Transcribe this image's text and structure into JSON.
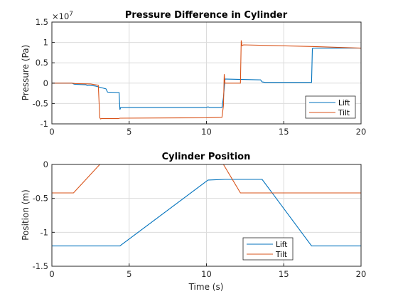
{
  "colors": {
    "lift": "#0072BD",
    "tilt": "#D95319"
  },
  "chart_data": [
    {
      "type": "line",
      "title": "Pressure Difference in Cylinder",
      "xlabel": "",
      "ylabel": "Pressure (Pa)",
      "exponent_label": "×10",
      "exponent_power": "7",
      "xlim": [
        0,
        20
      ],
      "ylim": [
        -1,
        1.5
      ],
      "xticks": [
        0,
        5,
        10,
        15,
        20
      ],
      "yticks": [
        -1,
        -0.5,
        0,
        0.5,
        1,
        1.5
      ],
      "xtick_labels": [
        "0",
        "5",
        "10",
        "15",
        "20"
      ],
      "ytick_labels": [
        "-1",
        "-0.5",
        "0",
        "0.5",
        "1",
        "1.5"
      ],
      "grid": true,
      "legend": "bottom-right",
      "series": [
        {
          "name": "Lift",
          "color": "#0072BD",
          "x": [
            0,
            1.3,
            1.4,
            1.5,
            2.2,
            2.3,
            2.4,
            2.8,
            2.9,
            3.1,
            3.5,
            3.6,
            4.35,
            4.4,
            4.45,
            4.5,
            10.0,
            10.1,
            10.2,
            11.0,
            11.1,
            11.2,
            11.3,
            13.5,
            13.6,
            13.8,
            16.8,
            16.85,
            16.9,
            20
          ],
          "y": [
            0,
            0,
            -0.02,
            -0.03,
            -0.04,
            -0.06,
            -0.05,
            -0.07,
            -0.08,
            -0.1,
            -0.14,
            -0.22,
            -0.23,
            -0.65,
            -0.6,
            -0.6,
            -0.6,
            -0.58,
            -0.6,
            -0.6,
            -0.35,
            0.1,
            0.1,
            0.08,
            0.03,
            0.02,
            0.02,
            0.85,
            0.86,
            0.86
          ]
        },
        {
          "name": "Tilt",
          "color": "#D95319",
          "x": [
            0,
            1.3,
            1.5,
            2.5,
            3.0,
            3.1,
            3.15,
            3.2,
            4.3,
            4.4,
            10.0,
            11.0,
            11.1,
            11.15,
            11.2,
            12.2,
            12.25,
            12.3,
            12.4,
            16.8,
            20
          ],
          "y": [
            0,
            0,
            -0.01,
            -0.02,
            -0.05,
            -0.85,
            -0.88,
            -0.87,
            -0.87,
            -0.86,
            -0.85,
            -0.84,
            -0.55,
            0.22,
            0.0,
            0.0,
            1.05,
            0.92,
            0.94,
            0.9,
            0.86
          ]
        }
      ]
    },
    {
      "type": "line",
      "title": "Cylinder Position",
      "xlabel": "Time (s)",
      "ylabel": "Position (m)",
      "xlim": [
        0,
        20
      ],
      "ylim": [
        -1.5,
        0
      ],
      "xticks": [
        0,
        5,
        10,
        15,
        20
      ],
      "yticks": [
        -1.5,
        -1,
        -0.5,
        0
      ],
      "xtick_labels": [
        "0",
        "5",
        "10",
        "15",
        "20"
      ],
      "ytick_labels": [
        "-1.5",
        "-1",
        "-0.5",
        "0"
      ],
      "grid": true,
      "legend": "bottom-center",
      "series": [
        {
          "name": "Lift",
          "color": "#0072BD",
          "x": [
            0,
            4.4,
            10.1,
            11.2,
            13.6,
            16.8,
            20
          ],
          "y": [
            -1.2,
            -1.2,
            -0.23,
            -0.22,
            -0.22,
            -1.2,
            -1.2
          ]
        },
        {
          "name": "Tilt",
          "color": "#D95319",
          "x": [
            0,
            1.4,
            3.1,
            11.1,
            12.2,
            20
          ],
          "y": [
            -0.42,
            -0.42,
            0,
            0,
            -0.42,
            -0.42
          ]
        }
      ]
    }
  ]
}
